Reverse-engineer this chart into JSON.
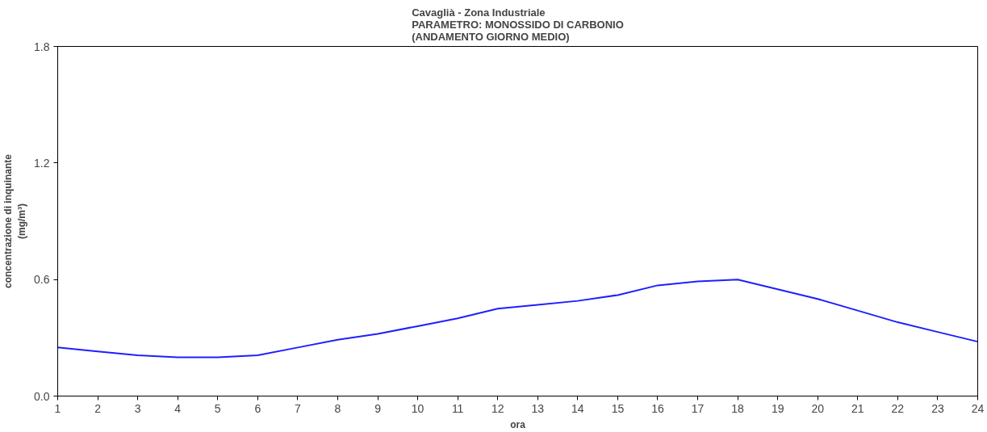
{
  "chart_data": {
    "type": "line",
    "title": "Cavaglià - Zona Industriale\nPARAMETRO: MONOSSIDO DI CARBONIO\n(ANDAMENTO GIORNO MEDIO)",
    "xlabel": "ora",
    "ylabel": "concentrazione di inquinante\n(mg/m³)",
    "x": [
      1,
      2,
      3,
      4,
      5,
      6,
      7,
      8,
      9,
      10,
      11,
      12,
      13,
      14,
      15,
      16,
      17,
      18,
      19,
      20,
      21,
      22,
      23,
      24
    ],
    "series": [
      {
        "color": "#1f1fff",
        "values": [
          0.25,
          0.23,
          0.21,
          0.2,
          0.2,
          0.21,
          0.25,
          0.29,
          0.32,
          0.36,
          0.4,
          0.45,
          0.47,
          0.49,
          0.52,
          0.57,
          0.59,
          0.6,
          0.55,
          0.5,
          0.44,
          0.38,
          0.33,
          0.28
        ]
      }
    ],
    "xlim": [
      1,
      24
    ],
    "xticks": [
      1,
      2,
      3,
      4,
      5,
      6,
      7,
      8,
      9,
      10,
      11,
      12,
      13,
      14,
      15,
      16,
      17,
      18,
      19,
      20,
      21,
      22,
      23,
      24
    ],
    "ylim": [
      0,
      1.8
    ],
    "yticks": [
      {
        "value": 0,
        "label": "0.0"
      },
      {
        "value": 0.6,
        "label": "0.6"
      },
      {
        "value": 1.2,
        "label": "1.2"
      },
      {
        "value": 1.8,
        "label": "1.8"
      }
    ],
    "grid": false,
    "marker": "none",
    "line_style": "solid"
  }
}
